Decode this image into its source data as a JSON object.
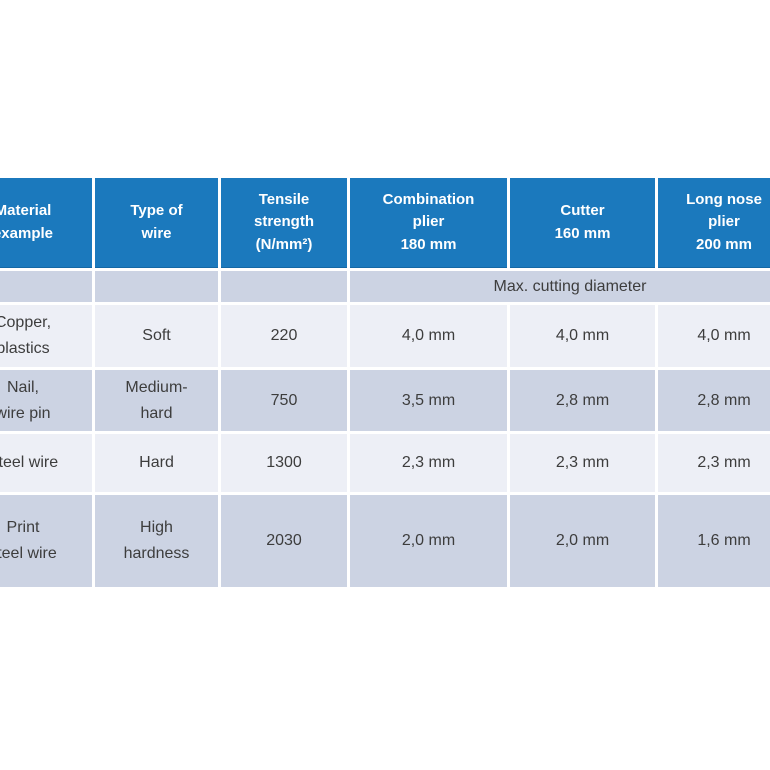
{
  "colors": {
    "header_bg": "#1b79bd",
    "header_text": "#ffffff",
    "header_edge": "#1468a5",
    "row_light": "#edeff6",
    "row_dark": "#ccd3e3",
    "body_text": "#3d3d3d",
    "divider": "#ffffff"
  },
  "table": {
    "headers": {
      "material": "Material\nexample",
      "wire_type": "Type of\nwire",
      "tensile": "Tensile\nstrength\n(N/mm²)",
      "combination_plier": "Combination\nplier\n180 mm",
      "cutter": "Cutter\n160 mm",
      "long_nose_plier": "Long nose\nplier\n200 mm"
    },
    "subheader": {
      "merged_label": "Max. cutting diameter"
    },
    "rows": [
      {
        "material": "Copper,\nplastics",
        "wire_type": "Soft",
        "tensile": "220",
        "combination_plier": "4,0 mm",
        "cutter": "4,0 mm",
        "long_nose_plier": "4,0 mm"
      },
      {
        "material": "Nail,\nwire pin",
        "wire_type": "Medium-\nhard",
        "tensile": "750",
        "combination_plier": "3,5 mm",
        "cutter": "2,8 mm",
        "long_nose_plier": "2,8 mm"
      },
      {
        "material": "Steel wire",
        "wire_type": "Hard",
        "tensile": "1300",
        "combination_plier": "2,3 mm",
        "cutter": "2,3 mm",
        "long_nose_plier": "2,3 mm"
      },
      {
        "material": "Print\nsteel wire",
        "wire_type": "High\nhardness",
        "tensile": "2030",
        "combination_plier": "2,0 mm",
        "cutter": "2,0 mm",
        "long_nose_plier": "1,6 mm"
      }
    ]
  }
}
